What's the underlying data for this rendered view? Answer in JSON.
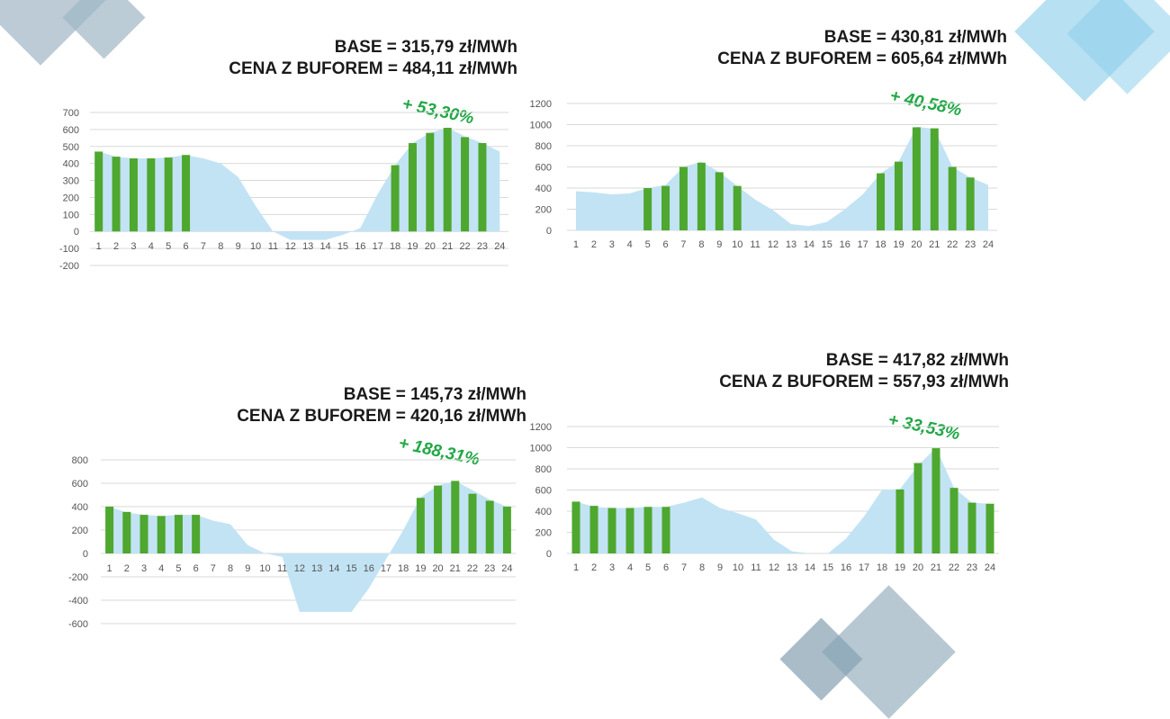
{
  "colors": {
    "bar": "#4ea72e",
    "area": "#c2e3f4",
    "grid": "#d9d9d9",
    "accent": "#21a845",
    "title": "#1a1a1a"
  },
  "chart_data": [
    {
      "type": "bar",
      "title_base": "BASE = 315,79 zł/MWh",
      "title_buffer": "CENA Z BUFOREM = 484,11 zł/MWh",
      "annotation": "+ 53,30%",
      "categories": [
        "1",
        "2",
        "3",
        "4",
        "5",
        "6",
        "7",
        "8",
        "9",
        "10",
        "11",
        "12",
        "13",
        "14",
        "15",
        "16",
        "17",
        "18",
        "19",
        "20",
        "21",
        "22",
        "23",
        "24"
      ],
      "yticks": [
        "700",
        "600",
        "500",
        "400",
        "300",
        "200",
        "100",
        "0",
        "-100",
        "-200"
      ],
      "ylim": [
        -200,
        700
      ],
      "series": [
        {
          "name": "area",
          "type": "area",
          "values": [
            470,
            440,
            430,
            430,
            435,
            450,
            430,
            400,
            320,
            150,
            0,
            -50,
            -50,
            -50,
            -20,
            20,
            220,
            390,
            520,
            580,
            610,
            560,
            520,
            470
          ]
        },
        {
          "name": "bars",
          "type": "bar",
          "values": [
            470,
            440,
            430,
            430,
            435,
            450,
            null,
            null,
            null,
            null,
            null,
            null,
            null,
            null,
            null,
            null,
            null,
            390,
            520,
            580,
            610,
            555,
            520,
            null
          ]
        }
      ]
    },
    {
      "type": "bar",
      "title_base": "BASE = 430,81 zł/MWh",
      "title_buffer": "CENA Z BUFOREM = 605,64 zł/MWh",
      "annotation": "+ 40,58%",
      "categories": [
        "1",
        "2",
        "3",
        "4",
        "5",
        "6",
        "7",
        "8",
        "9",
        "10",
        "11",
        "12",
        "13",
        "14",
        "15",
        "16",
        "17",
        "18",
        "19",
        "20",
        "21",
        "22",
        "23",
        "24"
      ],
      "yticks": [
        "1200",
        "1000",
        "800",
        "600",
        "400",
        "200",
        "0"
      ],
      "ylim": [
        0,
        1200
      ],
      "series": [
        {
          "name": "area",
          "type": "area",
          "values": [
            370,
            360,
            340,
            350,
            400,
            430,
            600,
            650,
            550,
            420,
            290,
            190,
            60,
            40,
            80,
            200,
            340,
            540,
            650,
            980,
            960,
            600,
            500,
            430
          ]
        },
        {
          "name": "bars",
          "type": "bar",
          "values": [
            null,
            null,
            null,
            null,
            400,
            420,
            600,
            640,
            550,
            420,
            null,
            null,
            null,
            null,
            null,
            null,
            null,
            540,
            650,
            975,
            965,
            600,
            500,
            null
          ]
        }
      ]
    },
    {
      "type": "bar",
      "title_base": "BASE = 145,73 zł/MWh",
      "title_buffer": "CENA Z BUFOREM = 420,16 zł/MWh",
      "annotation": "+ 188,31%",
      "categories": [
        "1",
        "2",
        "3",
        "4",
        "5",
        "6",
        "7",
        "8",
        "9",
        "10",
        "11",
        "12",
        "13",
        "14",
        "15",
        "16",
        "17",
        "18",
        "19",
        "20",
        "21",
        "22",
        "23",
        "24"
      ],
      "yticks": [
        "800",
        "600",
        "400",
        "200",
        "0",
        "-200",
        "-400",
        "-600"
      ],
      "ylim": [
        -600,
        800
      ],
      "series": [
        {
          "name": "area",
          "type": "area",
          "values": [
            400,
            350,
            330,
            320,
            330,
            330,
            280,
            250,
            70,
            0,
            -30,
            -500,
            -500,
            -500,
            -500,
            -300,
            -50,
            200,
            480,
            580,
            620,
            540,
            460,
            400
          ]
        },
        {
          "name": "bars",
          "type": "bar",
          "values": [
            400,
            355,
            330,
            320,
            330,
            330,
            null,
            null,
            null,
            null,
            null,
            null,
            null,
            null,
            null,
            null,
            null,
            null,
            475,
            580,
            620,
            510,
            450,
            400
          ]
        }
      ]
    },
    {
      "type": "bar",
      "title_base": "BASE = 417,82 zł/MWh",
      "title_buffer": "CENA Z BUFOREM = 557,93 zł/MWh",
      "annotation": "+ 33,53%",
      "categories": [
        "1",
        "2",
        "3",
        "4",
        "5",
        "6",
        "7",
        "8",
        "9",
        "10",
        "11",
        "12",
        "13",
        "14",
        "15",
        "16",
        "17",
        "18",
        "19",
        "20",
        "21",
        "22",
        "23",
        "24"
      ],
      "yticks": [
        "1200",
        "1000",
        "800",
        "600",
        "400",
        "200",
        "0"
      ],
      "ylim": [
        0,
        1200
      ],
      "series": [
        {
          "name": "area",
          "type": "area",
          "values": [
            490,
            440,
            430,
            430,
            440,
            440,
            480,
            530,
            430,
            380,
            320,
            130,
            20,
            0,
            0,
            140,
            350,
            600,
            610,
            830,
            1000,
            620,
            480,
            470
          ]
        },
        {
          "name": "bars",
          "type": "bar",
          "values": [
            490,
            450,
            430,
            430,
            440,
            440,
            null,
            null,
            null,
            null,
            null,
            null,
            null,
            null,
            null,
            null,
            null,
            null,
            605,
            855,
            995,
            620,
            480,
            470
          ]
        }
      ]
    }
  ]
}
